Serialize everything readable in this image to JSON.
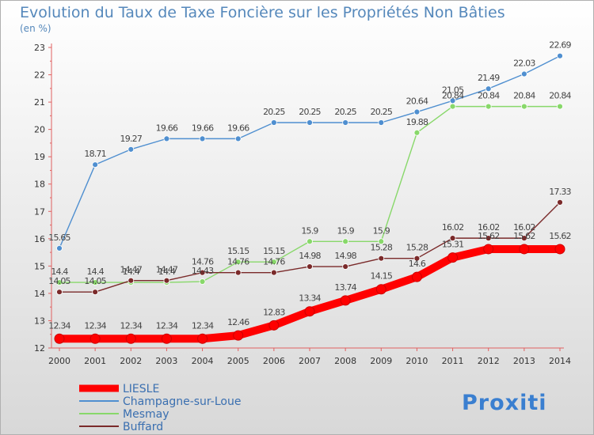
{
  "chart_data": {
    "type": "line",
    "title": "Evolution du Taux de Taxe Foncière sur les Propriétés Non Bâties",
    "subtitle": "(en %)",
    "x": [
      2000,
      2001,
      2002,
      2003,
      2004,
      2005,
      2006,
      2007,
      2008,
      2009,
      2010,
      2011,
      2012,
      2013,
      2014
    ],
    "ylim": [
      12,
      23
    ],
    "yticks": [
      12,
      13,
      14,
      15,
      16,
      17,
      18,
      19,
      20,
      21,
      22,
      23
    ],
    "grid": false,
    "legend_position": "bottom-left",
    "series": [
      {
        "name": "LIESLE",
        "color": "#ff0000",
        "values": [
          12.34,
          12.34,
          12.34,
          12.34,
          12.34,
          12.46,
          12.83,
          13.34,
          13.74,
          14.15,
          14.6,
          15.31,
          15.62,
          15.62,
          15.62
        ],
        "labels": [
          "12.34",
          "12.34",
          "12.34",
          "12.34",
          "12.34",
          "12.46",
          "12.83",
          "13.34",
          "13.74",
          "14.15",
          "14.6",
          "15.31",
          "15.62",
          "15.62",
          "15.62"
        ]
      },
      {
        "name": "Champagne-sur-Loue",
        "color": "#4f8fd0",
        "values": [
          15.65,
          18.71,
          19.27,
          19.66,
          19.66,
          19.66,
          20.25,
          20.25,
          20.25,
          20.25,
          20.64,
          21.05,
          21.49,
          22.03,
          22.69
        ],
        "labels": [
          "15.65",
          "18.71",
          "19.27",
          "19.66",
          "19.66",
          "19.66",
          "20.25",
          "20.25",
          "20.25",
          "20.25",
          "20.64",
          "21.05",
          "21.49",
          "22.03",
          "22.69"
        ]
      },
      {
        "name": "Mesmay",
        "color": "#88d86a",
        "values": [
          14.4,
          14.4,
          14.4,
          14.4,
          14.43,
          15.15,
          15.15,
          15.9,
          15.9,
          15.9,
          19.88,
          20.84,
          20.84,
          20.84,
          20.84
        ],
        "labels": [
          "14.4",
          "14.4",
          "14.4",
          "14.4",
          "14.43",
          "15.15",
          "15.15",
          "15.9",
          "15.9",
          "15.9",
          "19.88",
          "20.84",
          "20.84",
          "20.84",
          "20.84"
        ]
      },
      {
        "name": "Buffard",
        "color": "#7a2a2a",
        "values": [
          14.05,
          14.05,
          14.47,
          14.47,
          14.76,
          14.76,
          14.76,
          14.98,
          14.98,
          15.28,
          15.28,
          16.02,
          16.02,
          16.02,
          17.33
        ],
        "labels": [
          "14.05",
          "14.05",
          "14.47",
          "14.47",
          "14.76",
          "14.76",
          "14.76",
          "14.98",
          "14.98",
          "15.28",
          "15.28",
          "16.02",
          "16.02",
          "16.02",
          "17.33"
        ]
      }
    ]
  },
  "logo": {
    "text": "Proxiti"
  }
}
